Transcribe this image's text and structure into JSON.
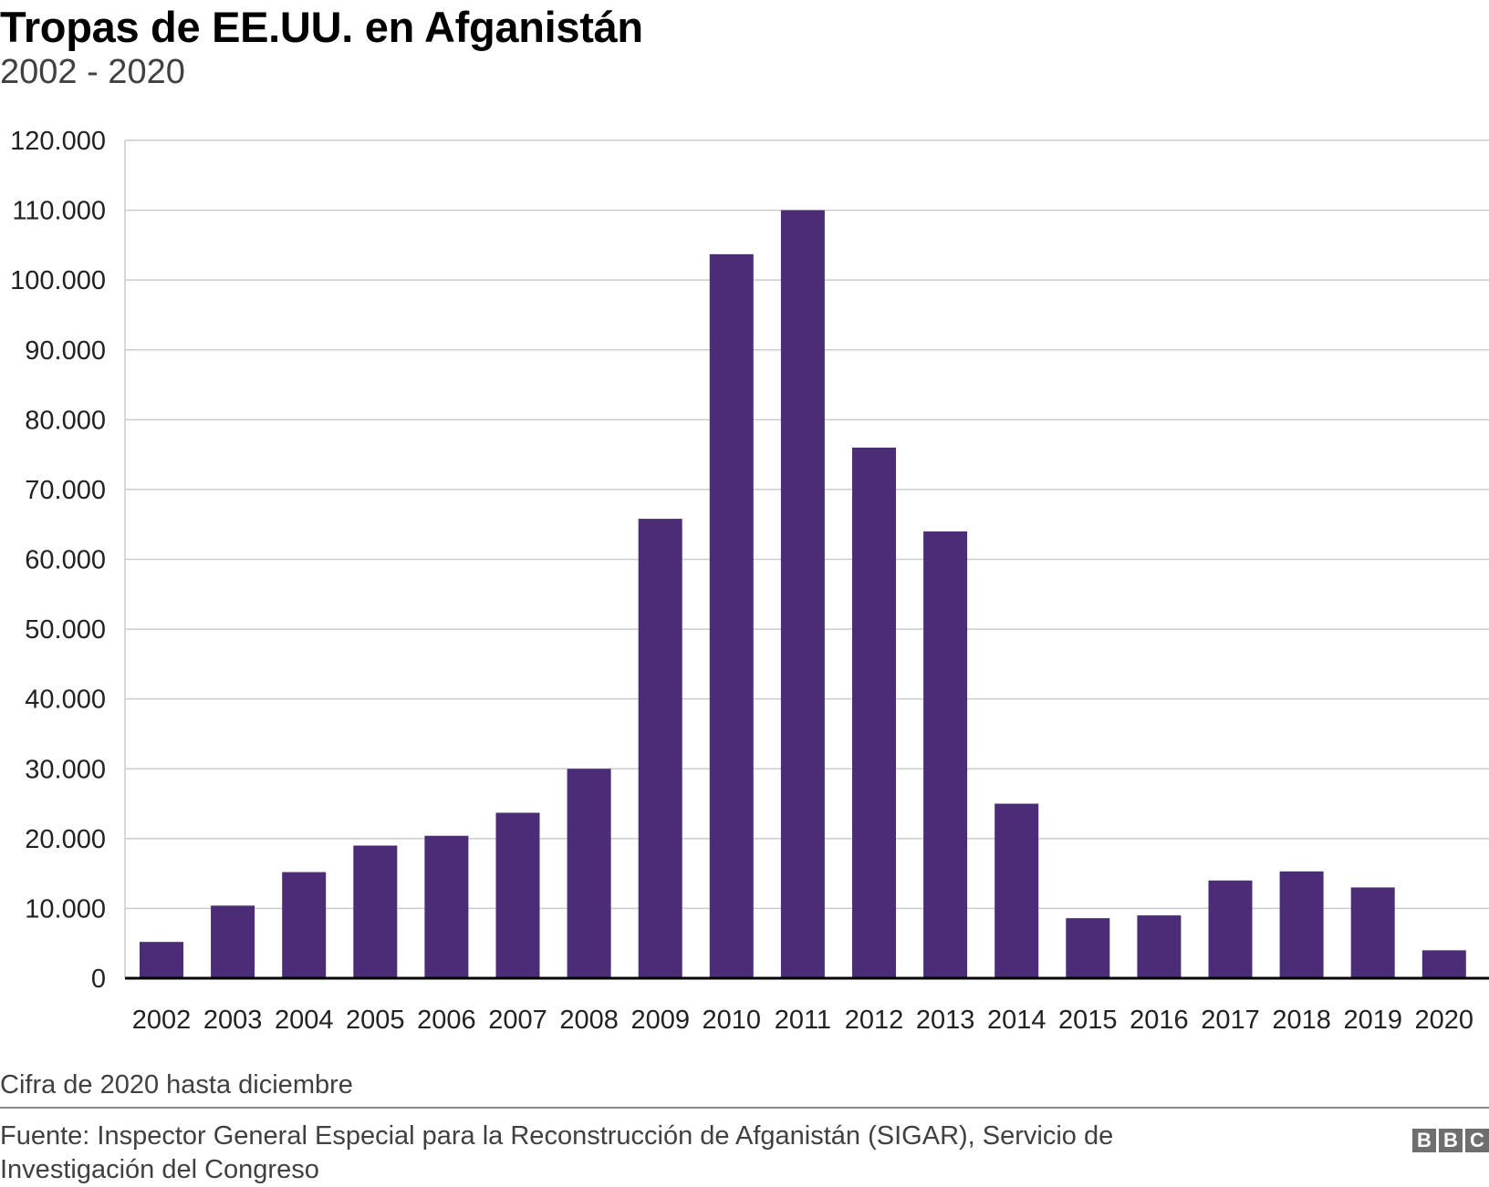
{
  "chart_data": {
    "type": "bar",
    "title": "Tropas de EE.UU. en Afganistán",
    "subtitle": "2002 - 2020",
    "categories": [
      "2002",
      "2003",
      "2004",
      "2005",
      "2006",
      "2007",
      "2008",
      "2009",
      "2010",
      "2011",
      "2012",
      "2013",
      "2014",
      "2015",
      "2016",
      "2017",
      "2018",
      "2019",
      "2020"
    ],
    "values": [
      5200,
      10400,
      15200,
      19000,
      20400,
      23700,
      30000,
      65800,
      103700,
      110000,
      76000,
      64000,
      25000,
      8600,
      9000,
      14000,
      15300,
      13000,
      4000
    ],
    "ylim": [
      0,
      120000
    ],
    "yticks": [
      0,
      10000,
      20000,
      30000,
      40000,
      50000,
      60000,
      70000,
      80000,
      90000,
      100000,
      110000,
      120000
    ],
    "ytick_labels": [
      "0",
      "10.000",
      "20.000",
      "30.000",
      "40.000",
      "50.000",
      "60.000",
      "70.000",
      "80.000",
      "90.000",
      "100.000",
      "110.000",
      "120.000"
    ],
    "xlabel": "",
    "ylabel": "",
    "grid": true,
    "bar_color": "#4b2c77"
  },
  "note": "Cifra de 2020 hasta diciembre",
  "source": "Fuente: Inspector General Especial para la Reconstrucción de Afganistán (SIGAR), Servicio de Investigación del Congreso",
  "logo": [
    "B",
    "B",
    "C"
  ]
}
